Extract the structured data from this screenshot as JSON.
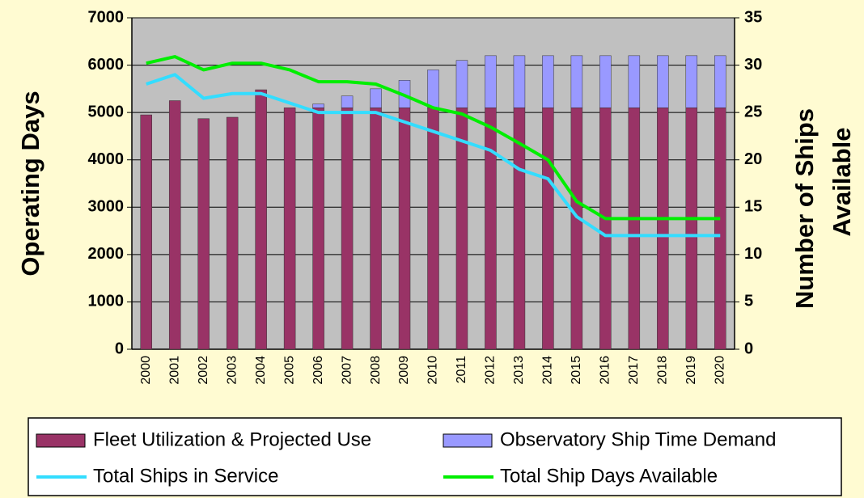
{
  "chart_data": {
    "type": "bar",
    "y_label": "Operating Days",
    "y2_label": [
      "Number of Ships",
      "Available"
    ],
    "categories": [
      "2000",
      "2001",
      "2002",
      "2003",
      "2004",
      "2005",
      "2006",
      "2007",
      "2008",
      "2009",
      "2010",
      "2011",
      "2012",
      "2013",
      "2014",
      "2015",
      "2016",
      "2017",
      "2018",
      "2019",
      "2020"
    ],
    "series": [
      {
        "name": "Fleet Utilization & Projected Use",
        "type": "bar",
        "color": "#993366",
        "values": [
          4950,
          5250,
          4870,
          4900,
          5480,
          5100,
          5100,
          5100,
          5100,
          5100,
          5100,
          5100,
          5100,
          5100,
          5100,
          5100,
          5100,
          5100,
          5100,
          5100,
          5100
        ]
      },
      {
        "name": "Observatory Ship Time Demand",
        "type": "bar",
        "color": "#9999ff",
        "values": [
          0,
          0,
          0,
          0,
          0,
          0,
          80,
          250,
          400,
          580,
          800,
          1000,
          1100,
          1100,
          1100,
          1100,
          1100,
          1100,
          1100,
          1100,
          1100
        ]
      },
      {
        "name": "Total Ships in Service",
        "type": "line",
        "axis": "y2",
        "color": "#33ddff",
        "values": [
          28,
          29,
          26.5,
          27,
          27,
          26,
          25,
          25,
          25,
          24,
          23,
          22,
          21,
          19,
          18,
          14,
          12,
          12,
          12,
          12,
          12
        ]
      },
      {
        "name": "Total Ship Days Available",
        "type": "line",
        "color": "#00ee00",
        "values": [
          6040,
          6180,
          5900,
          6040,
          6040,
          5900,
          5650,
          5650,
          5600,
          5360,
          5100,
          4970,
          4690,
          4350,
          4000,
          3120,
          2760,
          2760,
          2760,
          2760,
          2760
        ]
      }
    ],
    "stacked": true,
    "ylim": [
      0,
      7000
    ],
    "yticks": [
      0,
      1000,
      2000,
      3000,
      4000,
      5000,
      6000,
      7000
    ],
    "y2lim": [
      0,
      35
    ],
    "y2ticks": [
      0,
      5,
      10,
      15,
      20,
      25,
      30,
      35
    ],
    "grid": true,
    "legend": "bottom"
  }
}
